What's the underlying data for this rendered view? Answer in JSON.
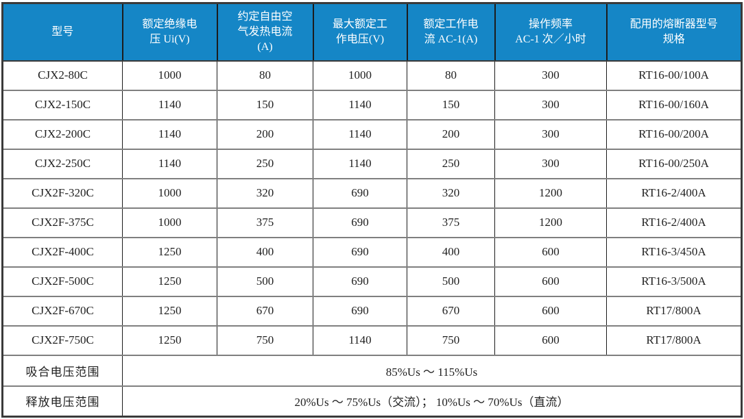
{
  "colors": {
    "header_bg": "#1586c6",
    "header_text": "#ffffff",
    "body_text": "#1f1f1f",
    "vertical_border": "#1a1a1a",
    "horizontal_border": "#7f7f7f"
  },
  "table": {
    "columns": [
      {
        "key": "model",
        "label": "型号"
      },
      {
        "key": "rated-insulation-voltage",
        "label": "额定绝缘电\n压 Ui(V)"
      },
      {
        "key": "conventional-free-air-thermal-current",
        "label": "约定自由空\n气发热电流\n(A)"
      },
      {
        "key": "max-rated-working-voltage",
        "label": "最大额定工\n作电压(V)"
      },
      {
        "key": "rated-working-current-ac1",
        "label": "额定工作电\n流 AC-1(A)"
      },
      {
        "key": "operating-frequency",
        "label": "操作频率\nAC-1 次／小时"
      },
      {
        "key": "fuse-model",
        "label": "配用的熔断器型号\n规格"
      }
    ],
    "rows": [
      [
        "CJX2-80C",
        "1000",
        "80",
        "1000",
        "80",
        "300",
        "RT16-00/100A"
      ],
      [
        "CJX2-150C",
        "1140",
        "150",
        "1140",
        "150",
        "300",
        "RT16-00/160A"
      ],
      [
        "CJX2-200C",
        "1140",
        "200",
        "1140",
        "200",
        "300",
        "RT16-00/200A"
      ],
      [
        "CJX2-250C",
        "1140",
        "250",
        "1140",
        "250",
        "300",
        "RT16-00/250A"
      ],
      [
        "CJX2F-320C",
        "1000",
        "320",
        "690",
        "320",
        "1200",
        "RT16-2/400A"
      ],
      [
        "CJX2F-375C",
        "1000",
        "375",
        "690",
        "375",
        "1200",
        "RT16-2/400A"
      ],
      [
        "CJX2F-400C",
        "1250",
        "400",
        "690",
        "400",
        "600",
        "RT16-3/450A"
      ],
      [
        "CJX2F-500C",
        "1250",
        "500",
        "690",
        "500",
        "600",
        "RT16-3/500A"
      ],
      [
        "CJX2F-670C",
        "1250",
        "670",
        "690",
        "670",
        "600",
        "RT17/800A"
      ],
      [
        "CJX2F-750C",
        "1250",
        "750",
        "1140",
        "750",
        "600",
        "RT17/800A"
      ]
    ],
    "footer_rows": [
      {
        "label": "吸合电压范围",
        "value": "85%Us ～ 115%Us"
      },
      {
        "label": "释放电压范围",
        "value": "20%Us ～ 75%Us（交流）； 10%Us ～ 70%Us（直流）"
      }
    ]
  }
}
